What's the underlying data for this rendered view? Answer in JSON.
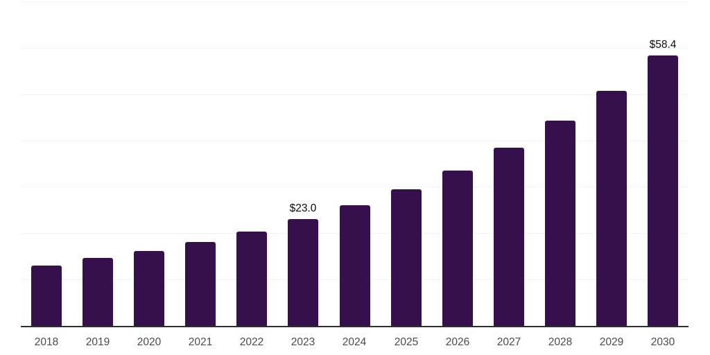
{
  "chart_data": {
    "type": "bar",
    "title": "",
    "xlabel": "",
    "ylabel": "",
    "categories": [
      "2018",
      "2019",
      "2020",
      "2021",
      "2022",
      "2023",
      "2024",
      "2025",
      "2026",
      "2027",
      "2028",
      "2029",
      "2030"
    ],
    "values": [
      13.0,
      14.7,
      16.2,
      18.1,
      20.3,
      23.0,
      26.0,
      29.5,
      33.5,
      38.4,
      44.2,
      50.7,
      58.4
    ],
    "data_labels": {
      "2023": "$23.0",
      "2030": "$58.4"
    },
    "ylim": [
      0,
      70
    ],
    "gridline_step": 10,
    "grid": "horizontal",
    "legend_position": "none",
    "y_axis_labels_visible": false,
    "colors": {
      "bar": "#36104d",
      "axis_line": "#2e2e2e",
      "gridline": "#f2f2f4",
      "x_tick_label": "#4a4a4a",
      "data_label": "#0a0a0a",
      "background": "#ffffff"
    }
  }
}
